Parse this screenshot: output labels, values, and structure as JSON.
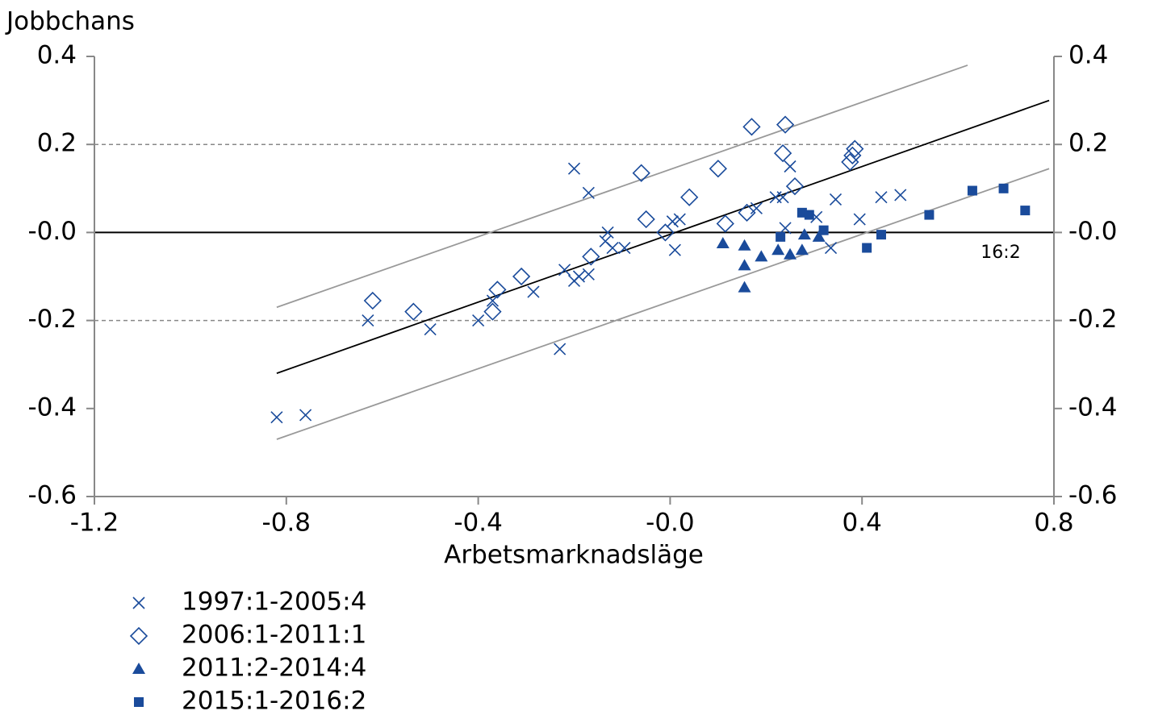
{
  "chart_data": {
    "type": "scatter",
    "y_label": "Jobbchans",
    "x_label": "Arbetsmarknadsläge",
    "annotation": "16:2",
    "xlim": [
      -1.2,
      0.8
    ],
    "ylim": [
      -0.6,
      0.4
    ],
    "xticks": [
      -1.2,
      -0.8,
      -0.4,
      {
        "value": 0,
        "label": "-0.0"
      },
      0.4,
      0.8
    ],
    "yticks": [
      -0.6,
      -0.4,
      -0.2,
      {
        "value": 0,
        "label": "-0.0"
      },
      0.2,
      0.4
    ],
    "y2lim": [
      -0.6,
      0.4
    ],
    "y2ticks": [
      -0.6,
      -0.4,
      -0.2,
      {
        "value": 0,
        "label": "-0.0"
      },
      0.2,
      0.4
    ],
    "dashed_grid": [
      -0.2,
      0.2
    ],
    "zero_line": 0,
    "series": [
      {
        "name": "1997:1-2005:4",
        "marker": "x",
        "color": "#1a4b9b",
        "x": [
          -0.82,
          -0.76,
          -0.63,
          -0.5,
          -0.4,
          -0.37,
          -0.285,
          -0.23,
          -0.22,
          -0.2,
          -0.2,
          -0.19,
          -0.17,
          -0.17,
          -0.13,
          -0.135,
          -0.12,
          -0.095,
          0.01,
          0.005,
          0.02,
          0.18,
          0.22,
          0.235,
          0.24,
          0.25,
          0.305,
          0.335,
          0.345,
          0.395,
          0.44,
          0.48
        ],
        "values": [
          -0.42,
          -0.415,
          -0.2,
          -0.22,
          -0.2,
          -0.155,
          -0.135,
          -0.265,
          -0.085,
          0.145,
          -0.11,
          -0.1,
          0.09,
          -0.095,
          0.0,
          -0.02,
          -0.035,
          -0.035,
          -0.04,
          0.025,
          0.03,
          0.055,
          0.08,
          0.08,
          0.01,
          0.15,
          0.035,
          -0.035,
          0.075,
          0.03,
          0.08,
          0.085
        ]
      },
      {
        "name": "2006:1-2011:1",
        "marker": "diamond",
        "color": "#1a4b9b",
        "x": [
          -0.62,
          -0.535,
          -0.37,
          -0.36,
          -0.31,
          -0.165,
          -0.06,
          -0.05,
          -0.01,
          0.04,
          0.1,
          0.115,
          0.16,
          0.17,
          0.235,
          0.24,
          0.26,
          0.375,
          0.38,
          0.385
        ],
        "values": [
          -0.155,
          -0.18,
          -0.18,
          -0.13,
          -0.1,
          -0.055,
          0.135,
          0.03,
          0.0,
          0.08,
          0.145,
          0.02,
          0.045,
          0.24,
          0.18,
          0.245,
          0.105,
          0.16,
          0.175,
          0.19
        ]
      },
      {
        "name": "2011:2-2014:4",
        "marker": "triangle",
        "color": "#1a4b9b",
        "x": [
          0.11,
          0.155,
          0.155,
          0.155,
          0.19,
          0.225,
          0.25,
          0.275,
          0.28,
          0.31
        ],
        "values": [
          -0.025,
          -0.03,
          -0.075,
          -0.125,
          -0.055,
          -0.04,
          -0.05,
          -0.04,
          -0.005,
          -0.01
        ]
      },
      {
        "name": "2015:1-2016:2",
        "marker": "square",
        "color": "#1a4b9b",
        "x": [
          0.23,
          0.275,
          0.29,
          0.32,
          0.41,
          0.44,
          0.54,
          0.63,
          0.695,
          0.74
        ],
        "values": [
          -0.01,
          0.045,
          0.04,
          0.005,
          -0.035,
          -0.005,
          0.04,
          0.095,
          0.1,
          0.05
        ]
      }
    ],
    "fit_lines": [
      {
        "color": "#000000",
        "x": [
          -0.82,
          0.79
        ],
        "values": [
          -0.32,
          0.3
        ]
      },
      {
        "color": "#999999",
        "x": [
          -0.82,
          0.62
        ],
        "values": [
          -0.17,
          0.38
        ]
      },
      {
        "color": "#999999",
        "x": [
          -0.82,
          0.79
        ],
        "values": [
          -0.47,
          0.145
        ]
      }
    ]
  }
}
